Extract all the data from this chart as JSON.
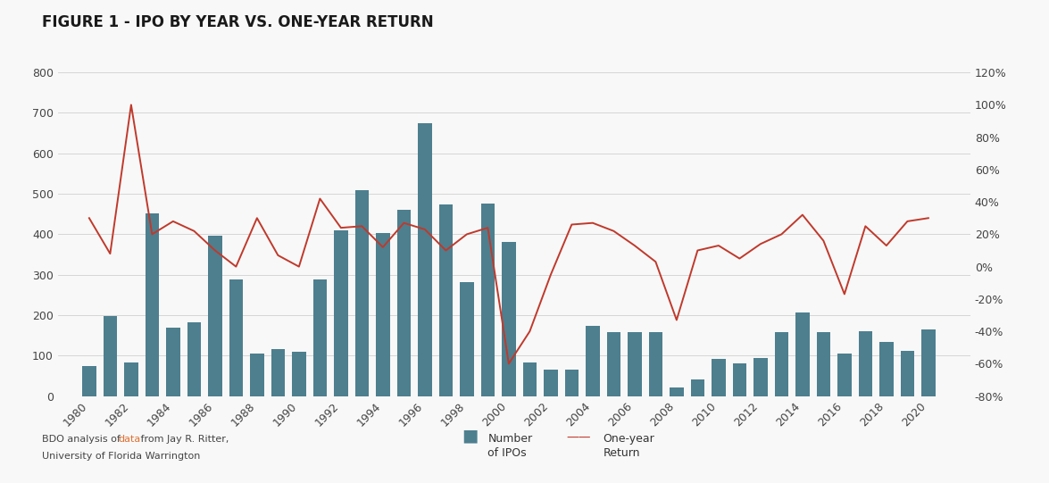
{
  "title": "FIGURE 1 - IPO BY YEAR VS. ONE-YEAR RETURN",
  "years": [
    1980,
    1981,
    1982,
    1983,
    1984,
    1985,
    1986,
    1987,
    1988,
    1989,
    1990,
    1991,
    1992,
    1993,
    1994,
    1995,
    1996,
    1997,
    1998,
    1999,
    2000,
    2001,
    2002,
    2003,
    2004,
    2005,
    2006,
    2007,
    2008,
    2009,
    2010,
    2011,
    2012,
    2013,
    2014,
    2015,
    2016,
    2017,
    2018,
    2019,
    2020
  ],
  "ipo_counts": [
    75,
    197,
    83,
    452,
    170,
    183,
    396,
    288,
    105,
    117,
    110,
    288,
    410,
    510,
    403,
    461,
    675,
    474,
    281,
    476,
    381,
    83,
    66,
    66,
    174,
    159,
    157,
    159,
    21,
    41,
    91,
    81,
    93,
    157,
    206,
    158,
    105,
    160,
    134,
    112,
    165
  ],
  "one_year_return": [
    0.3,
    0.08,
    1.0,
    0.2,
    0.28,
    0.22,
    0.1,
    0.0,
    0.3,
    0.07,
    0.0,
    0.42,
    0.24,
    0.25,
    0.12,
    0.27,
    0.23,
    0.1,
    0.2,
    0.24,
    -0.6,
    -0.4,
    -0.05,
    0.26,
    0.27,
    0.22,
    0.13,
    0.03,
    -0.33,
    0.1,
    0.13,
    0.05,
    0.14,
    0.2,
    0.32,
    0.16,
    -0.17,
    0.25,
    0.13,
    0.28,
    0.3
  ],
  "bar_color": "#4d7f8f",
  "line_color": "#c0392b",
  "background_color": "#f8f8f8",
  "grid_color": "#d0d0d0",
  "title_color": "#1a1a1a",
  "ylim_left": [
    0,
    800
  ],
  "ylim_right": [
    -0.8,
    1.2
  ],
  "yticks_left": [
    0,
    100,
    200,
    300,
    400,
    500,
    600,
    700,
    800
  ],
  "yticks_right": [
    -0.8,
    -0.6,
    -0.4,
    -0.2,
    0.0,
    0.2,
    0.4,
    0.6,
    0.8,
    1.0,
    1.2
  ],
  "ytick_labels_right": [
    "-80%",
    "-60%",
    "-40%",
    "-20%",
    "0%",
    "20%",
    "40%",
    "60%",
    "80%",
    "100%",
    "120%"
  ],
  "legend_bar_label": "Number\nof IPOs",
  "legend_line_label": "One-year\nReturn",
  "title_fontsize": 12,
  "axis_fontsize": 9,
  "footnote_fontsize": 8
}
